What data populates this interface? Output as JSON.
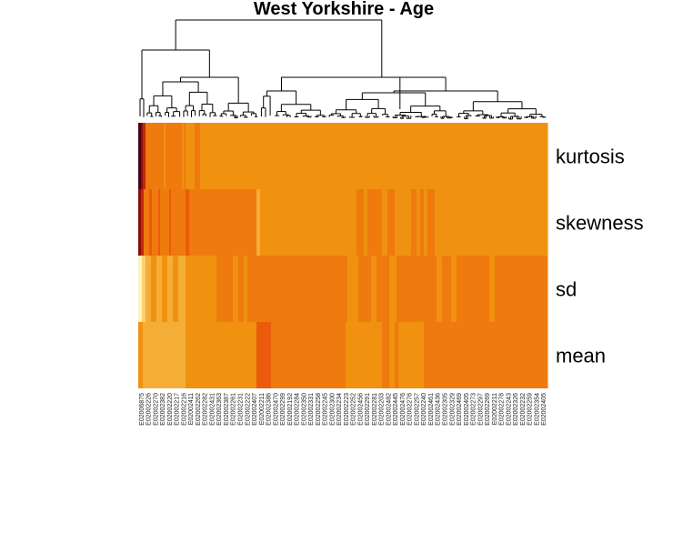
{
  "chart_data": {
    "type": "heatmap",
    "title": "West Yorkshire - Age",
    "rows": [
      "kurtosis",
      "skewness",
      "sd",
      "mean"
    ],
    "column_labels": [
      "E02006875",
      "E02002226",
      "E02002270",
      "E02002382",
      "E02002220",
      "E02002217",
      "E02002216",
      "E02002411",
      "E02002262",
      "E02002282",
      "E02002431",
      "E02002363",
      "E02002387",
      "E02002261",
      "E02002231",
      "E02002222",
      "E02002407",
      "E02002211",
      "E02002386",
      "E02002470",
      "E02002299",
      "E02002192",
      "E02002284",
      "E02002350",
      "E02002331",
      "E02002258",
      "E02002245",
      "E02002300",
      "E02002234",
      "E02002223",
      "E02002252",
      "E02002456",
      "E02002291",
      "E02002281",
      "E02002203",
      "E02002482",
      "E02002445",
      "E02002476",
      "E02002276",
      "E02002257",
      "E02002240",
      "E02002461",
      "E02002436",
      "E02002305",
      "E02002329",
      "E02002469",
      "E02002405",
      "E02002273",
      "E02002297",
      "E02002269",
      "E02002211",
      "E02002278",
      "E02002243",
      "E02002326",
      "E02002232",
      "E02002259",
      "E02002354",
      "E02002405"
    ],
    "color_scale": [
      "#fff3c2",
      "#fbd070",
      "#f4ae38",
      "#f09210",
      "#ef7a0e",
      "#ea5c0b",
      "#c42a0a",
      "#8a0c0c",
      "#4a0012"
    ],
    "segments": {
      "kurtosis": [
        [
          0,
          3,
          8
        ],
        [
          3,
          5,
          7
        ],
        [
          5,
          8,
          6
        ],
        [
          8,
          28,
          4
        ],
        [
          28,
          30,
          3
        ],
        [
          30,
          48,
          4
        ],
        [
          48,
          50,
          3
        ],
        [
          50,
          52,
          4
        ],
        [
          52,
          62,
          3
        ],
        [
          62,
          68,
          4
        ],
        [
          68,
          70,
          3
        ],
        [
          70,
          112,
          3
        ],
        [
          112,
          114,
          3
        ],
        [
          114,
          130,
          3
        ],
        [
          130,
          170,
          3
        ],
        [
          170,
          178,
          3
        ],
        [
          178,
          200,
          3
        ],
        [
          200,
          208,
          3
        ],
        [
          208,
          230,
          3
        ],
        [
          230,
          305,
          3
        ],
        [
          305,
          312,
          3
        ],
        [
          312,
          320,
          3
        ],
        [
          320,
          450,
          3
        ]
      ],
      "skewness": [
        [
          0,
          3,
          7
        ],
        [
          3,
          6,
          6
        ],
        [
          6,
          12,
          4
        ],
        [
          12,
          15,
          5
        ],
        [
          15,
          22,
          4
        ],
        [
          22,
          24,
          5
        ],
        [
          24,
          34,
          4
        ],
        [
          34,
          36,
          5
        ],
        [
          36,
          52,
          4
        ],
        [
          52,
          56,
          5
        ],
        [
          56,
          60,
          4
        ],
        [
          60,
          70,
          4
        ],
        [
          70,
          130,
          4
        ],
        [
          130,
          134,
          2
        ],
        [
          134,
          240,
          3
        ],
        [
          240,
          248,
          4
        ],
        [
          248,
          252,
          3
        ],
        [
          252,
          268,
          4
        ],
        [
          268,
          274,
          3
        ],
        [
          274,
          282,
          4
        ],
        [
          282,
          300,
          3
        ],
        [
          300,
          306,
          4
        ],
        [
          306,
          310,
          3
        ],
        [
          310,
          314,
          4
        ],
        [
          314,
          318,
          3
        ],
        [
          318,
          326,
          4
        ],
        [
          326,
          450,
          3
        ]
      ],
      "sd": [
        [
          0,
          4,
          0
        ],
        [
          4,
          8,
          1
        ],
        [
          8,
          14,
          2
        ],
        [
          14,
          20,
          3
        ],
        [
          20,
          26,
          2
        ],
        [
          26,
          32,
          3
        ],
        [
          32,
          38,
          2
        ],
        [
          38,
          44,
          3
        ],
        [
          44,
          52,
          2
        ],
        [
          52,
          60,
          3
        ],
        [
          60,
          86,
          3
        ],
        [
          86,
          104,
          4
        ],
        [
          104,
          110,
          3
        ],
        [
          110,
          116,
          4
        ],
        [
          116,
          120,
          3
        ],
        [
          120,
          230,
          4
        ],
        [
          230,
          242,
          3
        ],
        [
          242,
          256,
          4
        ],
        [
          256,
          262,
          3
        ],
        [
          262,
          276,
          4
        ],
        [
          276,
          284,
          3
        ],
        [
          284,
          328,
          4
        ],
        [
          328,
          334,
          3
        ],
        [
          334,
          344,
          4
        ],
        [
          344,
          350,
          3
        ],
        [
          350,
          386,
          4
        ],
        [
          386,
          392,
          3
        ],
        [
          392,
          450,
          4
        ]
      ],
      "mean": [
        [
          0,
          5,
          3
        ],
        [
          5,
          52,
          2
        ],
        [
          52,
          130,
          3
        ],
        [
          130,
          146,
          5
        ],
        [
          146,
          228,
          4
        ],
        [
          228,
          268,
          3
        ],
        [
          268,
          276,
          4
        ],
        [
          276,
          282,
          3
        ],
        [
          282,
          286,
          4
        ],
        [
          286,
          314,
          3
        ],
        [
          314,
          320,
          4
        ],
        [
          320,
          450,
          4
        ]
      ]
    },
    "dendrogram": "column hierarchical clustering tree"
  }
}
